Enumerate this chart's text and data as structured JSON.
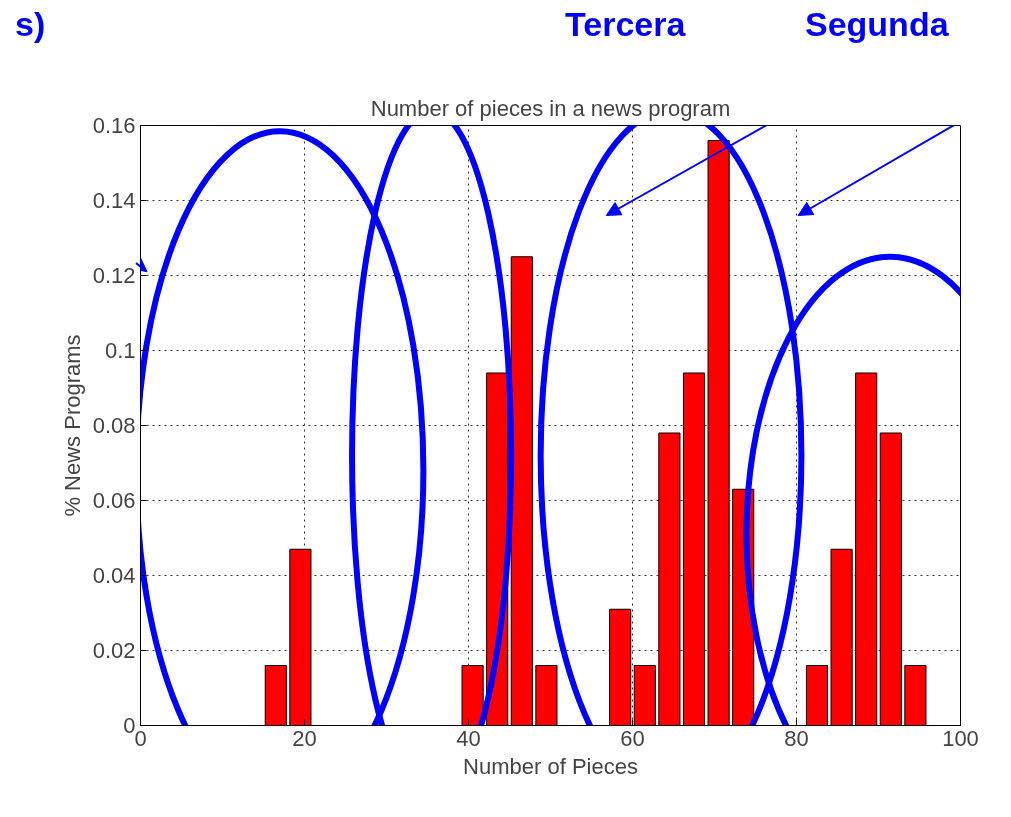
{
  "chart_data": {
    "type": "histogram",
    "title": "Number of pieces in a news program",
    "xlabel": "Number of Pieces",
    "ylabel": "% News Programs",
    "bins": [
      15,
      18,
      21,
      24,
      27,
      30,
      33,
      36,
      39,
      42,
      45,
      48,
      51,
      54,
      57,
      60,
      63,
      66,
      69,
      72,
      75,
      78,
      81,
      84,
      87,
      90,
      93,
      96
    ],
    "values": [
      0.016,
      0.047,
      0,
      0,
      0,
      0,
      0,
      0,
      0.016,
      0.094,
      0.125,
      0.016,
      0,
      0,
      0.031,
      0.016,
      0.078,
      0.094,
      0.156,
      0.063,
      0,
      0,
      0.016,
      0.047,
      0.094,
      0.078,
      0.016
    ],
    "color": "#ff0000",
    "xlim": [
      0,
      100
    ],
    "xticks": [
      0,
      20,
      40,
      60,
      80,
      100
    ],
    "ylim": [
      0,
      0.16
    ],
    "yticks": [
      0,
      0.02,
      0.04,
      0.06,
      0.08,
      0.1,
      0.12,
      0.14,
      0.16
    ],
    "grid": true,
    "annotations": [
      "s)",
      "Tercera",
      "Segunda"
    ]
  }
}
